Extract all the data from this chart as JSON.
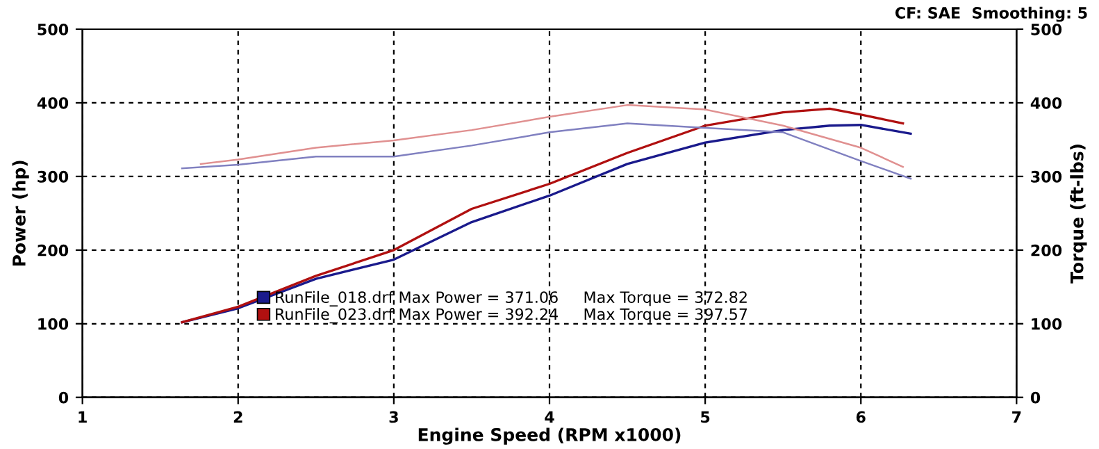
{
  "chart_data": {
    "type": "line",
    "xlabel": "Engine Speed (RPM x1000)",
    "ylabel": "Power (hp)",
    "y2label": "Torque (ft-lbs)",
    "annotations": [
      "CF: SAE  Smoothing: 5"
    ],
    "xlim": [
      1,
      7
    ],
    "xticks": [
      1,
      2,
      3,
      4,
      5,
      6,
      7
    ],
    "ylim": [
      0,
      500
    ],
    "yticks": [
      0,
      100,
      200,
      300,
      400,
      500
    ],
    "y2lim": [
      0,
      500
    ],
    "y2ticks": [
      0,
      100,
      200,
      300,
      400,
      500
    ],
    "grid": true,
    "legend": "bottom",
    "line_style": "solid",
    "series": [
      {
        "name": "RunFile_018.drf Max Power = 371.06     Max Torque = 372.82",
        "color": "#1a1a8c",
        "x": [
          1.64,
          2,
          2.5,
          3,
          3.5,
          4,
          4.5,
          5,
          5.5,
          5.8,
          6,
          6.32
        ],
        "values": [
          102,
          121,
          161,
          187,
          238,
          274,
          317,
          346,
          363,
          369,
          370,
          358
        ]
      },
      {
        "name": "RunFile_023.drf Max Power = 392.24     Max Torque = 397.57",
        "color": "#b01010",
        "x": [
          1.64,
          2,
          2.5,
          3,
          3.5,
          4,
          4.5,
          5,
          5.5,
          5.8,
          6,
          6.27
        ],
        "values": [
          102,
          123,
          165,
          200,
          256,
          290,
          332,
          369,
          387,
          392,
          384,
          372
        ]
      },
      {
        "color": "#8080c0",
        "axis": "y2",
        "x": [
          1.64,
          2,
          2.5,
          3,
          3.5,
          4,
          4.5,
          4.75,
          5,
          5.5,
          6,
          6.32
        ],
        "values": [
          311,
          316,
          327,
          327,
          342,
          360,
          372,
          369,
          366,
          360,
          321,
          297
        ]
      },
      {
        "color": "#e09090",
        "axis": "y2",
        "x": [
          1.76,
          2,
          2.5,
          3,
          3.5,
          4,
          4.5,
          4.75,
          5,
          5.5,
          6,
          6.27
        ],
        "values": [
          317,
          323,
          339,
          349,
          363,
          381,
          397,
          394,
          391,
          369,
          339,
          313
        ]
      }
    ]
  }
}
